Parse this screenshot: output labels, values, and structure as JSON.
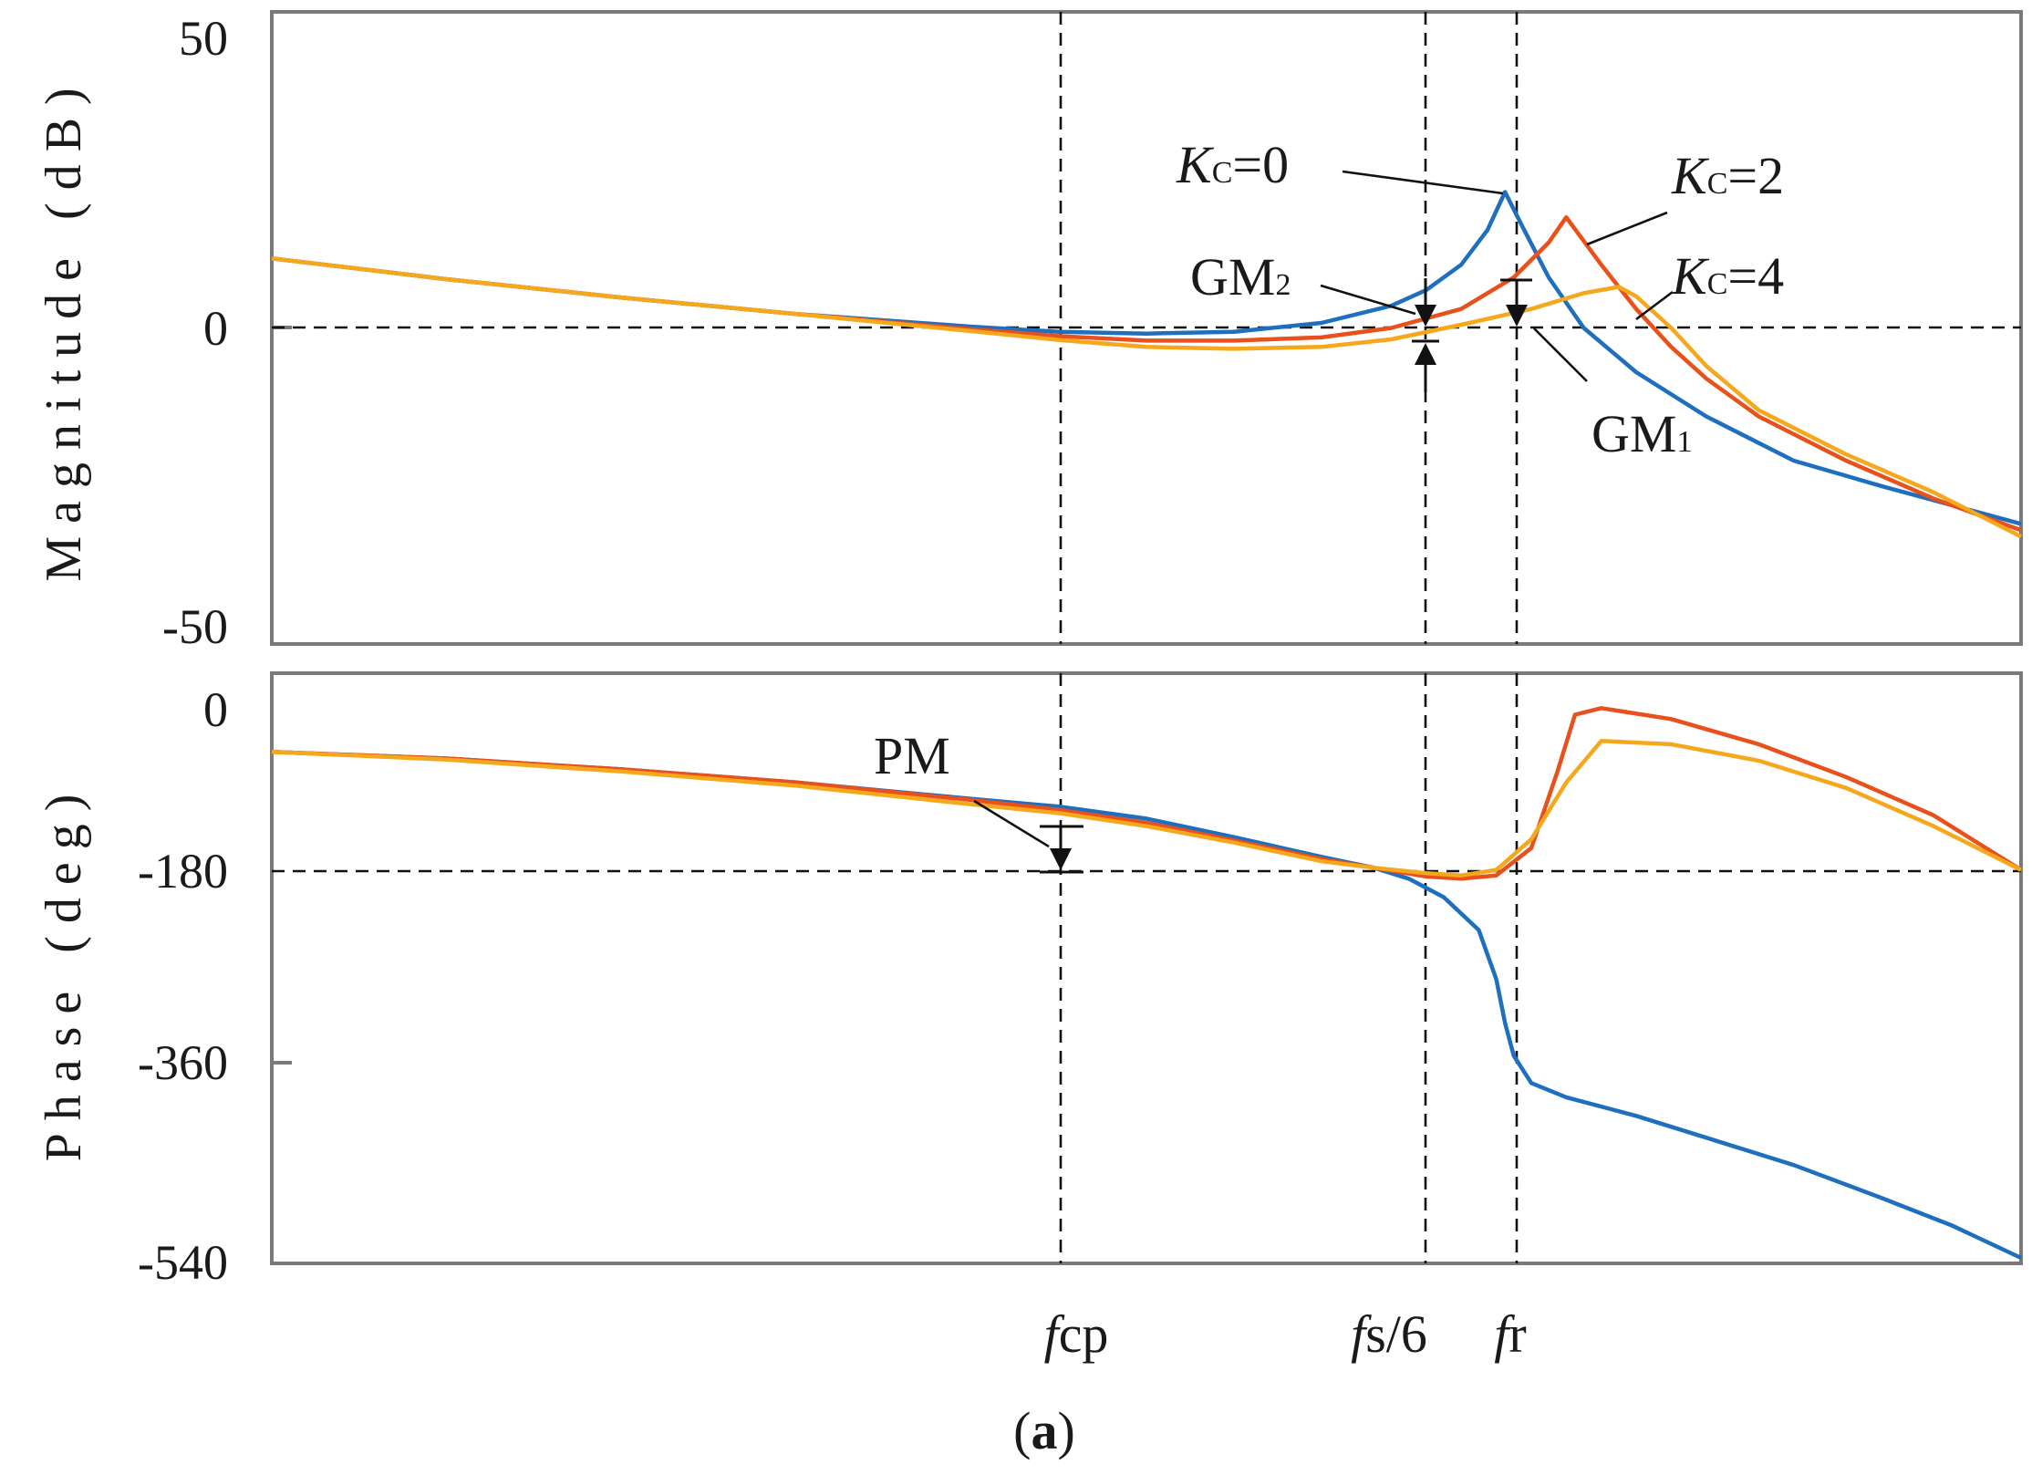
{
  "chart_data": [
    {
      "type": "line",
      "panel": "magnitude",
      "ylabel": "Magnitude (dB)",
      "ylim": [
        -50,
        50
      ],
      "yticks": [
        "50",
        "0",
        "-50"
      ],
      "x_scale": "log (unlabeled, normalized 0-1)",
      "series": [
        {
          "name": "Kc=0",
          "color": "#1f6fbf",
          "x": [
            0,
            0.1,
            0.2,
            0.3,
            0.4,
            0.45,
            0.5,
            0.55,
            0.6,
            0.64,
            0.66,
            0.68,
            0.695,
            0.705,
            0.715,
            0.73,
            0.75,
            0.78,
            0.82,
            0.87,
            0.92,
            1.0
          ],
          "y": [
            11,
            7.7,
            4.8,
            2.2,
            0.2,
            -0.6,
            -0.9,
            -0.6,
            0.8,
            3.5,
            6,
            10,
            15.5,
            21.5,
            16,
            8,
            0,
            -7,
            -14,
            -21,
            -25,
            -31
          ]
        },
        {
          "name": "Kc=2",
          "color": "#e8501c",
          "x": [
            0,
            0.1,
            0.2,
            0.3,
            0.4,
            0.45,
            0.5,
            0.55,
            0.6,
            0.64,
            0.68,
            0.71,
            0.73,
            0.74,
            0.76,
            0.78,
            0.8,
            0.82,
            0.85,
            0.9,
            0.95,
            1.0
          ],
          "y": [
            11,
            7.7,
            4.8,
            2.2,
            -0.2,
            -1.3,
            -2,
            -2,
            -1.5,
            0,
            3,
            8,
            13.5,
            17.5,
            10,
            3,
            -3,
            -8,
            -14,
            -21,
            -27,
            -32
          ]
        },
        {
          "name": "Kc=4",
          "color": "#f5a81c",
          "x": [
            0,
            0.1,
            0.2,
            0.3,
            0.4,
            0.45,
            0.5,
            0.55,
            0.6,
            0.64,
            0.68,
            0.72,
            0.75,
            0.77,
            0.78,
            0.8,
            0.82,
            0.85,
            0.9,
            0.95,
            1.0
          ],
          "y": [
            11,
            7.7,
            4.8,
            2.2,
            -0.5,
            -1.9,
            -3,
            -3.3,
            -3,
            -1.8,
            0.5,
            3,
            5.5,
            6.5,
            5,
            0,
            -6,
            -13,
            -20,
            -26,
            -33
          ]
        }
      ]
    },
    {
      "type": "line",
      "panel": "phase",
      "ylabel": "Phase (deg)",
      "ylim": [
        -540,
        0
      ],
      "yticks": [
        "0",
        "-180",
        "-360",
        "-540"
      ],
      "x_scale": "log (unlabeled, normalized 0-1)",
      "xticks": [
        "fcp",
        "fs/6",
        "fr"
      ],
      "series": [
        {
          "name": "Kc=0",
          "color": "#1f6fbf",
          "x": [
            0,
            0.1,
            0.2,
            0.3,
            0.4,
            0.45,
            0.5,
            0.55,
            0.6,
            0.63,
            0.65,
            0.67,
            0.69,
            0.7,
            0.705,
            0.71,
            0.72,
            0.74,
            0.78,
            0.82,
            0.87,
            0.92,
            0.96,
            1.0
          ],
          "y": [
            -72,
            -78,
            -88,
            -100,
            -115,
            -122,
            -133,
            -150,
            -168,
            -178,
            -188,
            -205,
            -235,
            -280,
            -320,
            -350,
            -375,
            -388,
            -405,
            -425,
            -450,
            -480,
            -505,
            -535
          ]
        },
        {
          "name": "Kc=2",
          "color": "#e8501c",
          "x": [
            0,
            0.1,
            0.2,
            0.3,
            0.4,
            0.45,
            0.5,
            0.55,
            0.6,
            0.63,
            0.66,
            0.68,
            0.7,
            0.72,
            0.735,
            0.745,
            0.76,
            0.8,
            0.85,
            0.9,
            0.95,
            1.0
          ],
          "y": [
            -72,
            -78,
            -88,
            -100,
            -116,
            -125,
            -137,
            -153,
            -170,
            -178,
            -186,
            -188,
            -185,
            -160,
            -90,
            -38,
            -32,
            -42,
            -65,
            -95,
            -130,
            -180
          ]
        },
        {
          "name": "Kc=4",
          "color": "#f5a81c",
          "x": [
            0,
            0.1,
            0.2,
            0.3,
            0.4,
            0.45,
            0.5,
            0.55,
            0.6,
            0.63,
            0.66,
            0.68,
            0.7,
            0.72,
            0.74,
            0.76,
            0.8,
            0.85,
            0.9,
            0.95,
            1.0
          ],
          "y": [
            -72,
            -79,
            -90,
            -103,
            -120,
            -128,
            -140,
            -155,
            -172,
            -178,
            -183,
            -185,
            -180,
            -152,
            -100,
            -62,
            -65,
            -80,
            -105,
            -140,
            -180
          ]
        }
      ]
    }
  ],
  "labels": {
    "kc0_k": "K",
    "kc0_c": "C",
    "kc0_v": "=0",
    "kc2_k": "K",
    "kc2_c": "C",
    "kc2_v": "=2",
    "kc4_k": "K",
    "kc4_c": "C",
    "kc4_v": "=4",
    "gm2_t": "GM",
    "gm2_s": "2",
    "gm1_t": "GM",
    "gm1_s": "1",
    "pm": "PM",
    "fcp_f": "f",
    "fcp_s": "cp",
    "fs6_f": "f",
    "fs6_s": "s",
    "fs6_r": "/6",
    "fr_f": "f",
    "fr_s": "r",
    "caption_open": "(",
    "caption_mid": "a",
    "caption_close": ")"
  }
}
